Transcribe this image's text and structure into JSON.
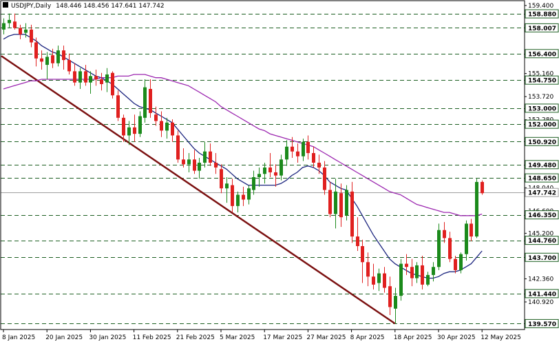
{
  "chart_data": {
    "type": "candlestick",
    "title": "USDJPY,Daily",
    "ohlc_readout": "148.446 148.456 147.641 147.742",
    "y_axis": {
      "range": [
        139.2,
        159.7
      ],
      "tick_labels": [
        {
          "value": 159.4,
          "label": "159.400"
        },
        {
          "value": 158.88,
          "label": "158.880"
        },
        {
          "value": 158.007,
          "label": "158.007"
        },
        {
          "value": 156.4,
          "label": "156.400"
        },
        {
          "value": 155.16,
          "label": "155.160"
        },
        {
          "value": 154.75,
          "label": "154.750"
        },
        {
          "value": 153.72,
          "label": "153.720"
        },
        {
          "value": 153.0,
          "label": "153.000"
        },
        {
          "value": 152.28,
          "label": "152.280"
        },
        {
          "value": 152.0,
          "label": "152.000"
        },
        {
          "value": 150.92,
          "label": "150.920"
        },
        {
          "value": 149.48,
          "label": "149.480"
        },
        {
          "value": 148.65,
          "label": "148.650"
        },
        {
          "value": 148.04,
          "label": "148.040"
        },
        {
          "value": 147.742,
          "label": "147.742"
        },
        {
          "value": 146.6,
          "label": "146.600"
        },
        {
          "value": 146.35,
          "label": "146.350"
        },
        {
          "value": 145.2,
          "label": "145.200"
        },
        {
          "value": 144.76,
          "label": "144.760"
        },
        {
          "value": 143.7,
          "label": "143.700"
        },
        {
          "value": 142.36,
          "label": "142.360"
        },
        {
          "value": 141.44,
          "label": "141.440"
        },
        {
          "value": 140.92,
          "label": "140.920"
        },
        {
          "value": 139.57,
          "label": "139.570"
        }
      ],
      "boxed_labels": [
        158.88,
        158.007,
        156.4,
        154.75,
        153.0,
        152.0,
        150.92,
        149.48,
        148.65,
        147.742,
        146.35,
        144.76,
        143.7,
        141.44,
        139.57
      ]
    },
    "x_axis": {
      "tick_labels": [
        "8 Jan 2025",
        "20 Jan 2025",
        "30 Jan 2025",
        "11 Feb 2025",
        "21 Feb 2025",
        "5 Mar 2025",
        "17 Mar 2025",
        "27 Mar 2025",
        "8 Apr 2025",
        "18 Apr 2025",
        "30 Apr 2025",
        "12 May 2025"
      ],
      "tick_bars": [
        0,
        8,
        16,
        24,
        32,
        40,
        48,
        56,
        64,
        72,
        80,
        88
      ]
    },
    "horizontal_levels": [
      158.88,
      158.007,
      156.4,
      154.75,
      153.0,
      152.0,
      150.92,
      149.48,
      148.65,
      146.35,
      144.76,
      143.7,
      141.44,
      139.57
    ],
    "current_price": 147.742,
    "trendline": {
      "start": {
        "bar": 0,
        "price": 156.25
      },
      "end": {
        "bar": 72,
        "price": 139.57
      }
    },
    "candles": [
      [
        157.9,
        158.6,
        157.6,
        158.3
      ],
      [
        158.3,
        158.9,
        158.0,
        158.5
      ],
      [
        158.4,
        158.9,
        157.9,
        158.0
      ],
      [
        158.0,
        158.2,
        157.3,
        157.6
      ],
      [
        157.7,
        158.3,
        157.4,
        157.9
      ],
      [
        157.9,
        158.2,
        156.8,
        157.1
      ],
      [
        157.1,
        157.4,
        155.6,
        156.1
      ],
      [
        156.1,
        156.6,
        155.4,
        155.9
      ],
      [
        155.7,
        156.5,
        154.8,
        156.2
      ],
      [
        156.3,
        156.7,
        155.5,
        155.8
      ],
      [
        155.8,
        156.9,
        155.6,
        156.6
      ],
      [
        156.6,
        156.9,
        155.4,
        156.0
      ],
      [
        156.0,
        156.4,
        155.1,
        155.3
      ],
      [
        155.3,
        155.8,
        154.4,
        154.6
      ],
      [
        154.6,
        155.5,
        154.2,
        155.3
      ],
      [
        155.3,
        155.7,
        154.4,
        154.6
      ],
      [
        154.6,
        155.3,
        153.9,
        155.0
      ],
      [
        155.0,
        155.4,
        154.4,
        154.8
      ],
      [
        154.8,
        155.2,
        154.1,
        154.5
      ],
      [
        154.6,
        155.5,
        154.0,
        155.1
      ],
      [
        155.2,
        155.3,
        153.6,
        153.8
      ],
      [
        153.8,
        154.1,
        152.2,
        152.4
      ],
      [
        152.4,
        152.6,
        150.9,
        151.3
      ],
      [
        151.3,
        152.2,
        150.7,
        151.8
      ],
      [
        151.8,
        152.6,
        150.9,
        151.4
      ],
      [
        151.4,
        152.8,
        151.2,
        152.5
      ],
      [
        152.4,
        154.8,
        152.1,
        154.3
      ],
      [
        154.2,
        154.8,
        152.4,
        152.7
      ],
      [
        152.6,
        153.1,
        151.9,
        152.2
      ],
      [
        152.2,
        152.8,
        151.2,
        151.6
      ],
      [
        151.6,
        152.4,
        151.1,
        152.1
      ],
      [
        152.1,
        152.3,
        150.9,
        151.3
      ],
      [
        151.3,
        151.6,
        149.6,
        149.8
      ],
      [
        149.8,
        150.5,
        149.3,
        149.5
      ],
      [
        149.5,
        150.2,
        149.0,
        149.8
      ],
      [
        149.8,
        150.4,
        148.9,
        149.1
      ],
      [
        149.1,
        149.9,
        148.6,
        149.6
      ],
      [
        149.6,
        150.9,
        149.3,
        150.3
      ],
      [
        150.3,
        150.8,
        149.4,
        149.6
      ],
      [
        149.6,
        150.2,
        148.9,
        149.3
      ],
      [
        149.2,
        149.5,
        147.7,
        148.0
      ],
      [
        148.0,
        148.7,
        147.1,
        148.3
      ],
      [
        148.2,
        148.6,
        146.5,
        146.9
      ],
      [
        146.9,
        147.8,
        146.5,
        147.6
      ],
      [
        147.6,
        148.1,
        146.9,
        147.3
      ],
      [
        147.3,
        148.2,
        147.0,
        148.0
      ],
      [
        147.9,
        149.1,
        147.6,
        148.7
      ],
      [
        148.7,
        149.3,
        148.1,
        148.9
      ],
      [
        148.9,
        149.6,
        148.3,
        149.3
      ],
      [
        149.3,
        150.2,
        148.7,
        149.0
      ],
      [
        149.0,
        149.5,
        148.1,
        148.8
      ],
      [
        148.8,
        150.1,
        148.5,
        149.8
      ],
      [
        149.8,
        151.0,
        149.4,
        150.6
      ],
      [
        150.6,
        151.2,
        149.9,
        150.3
      ],
      [
        150.3,
        150.8,
        149.6,
        150.0
      ],
      [
        150.0,
        151.1,
        149.7,
        150.9
      ],
      [
        150.9,
        151.3,
        149.8,
        150.2
      ],
      [
        150.2,
        150.6,
        149.3,
        149.6
      ],
      [
        149.6,
        150.1,
        148.9,
        149.3
      ],
      [
        149.3,
        149.7,
        147.6,
        147.9
      ],
      [
        147.9,
        148.4,
        146.2,
        146.4
      ],
      [
        146.4,
        148.6,
        145.5,
        147.8
      ],
      [
        147.7,
        148.3,
        145.6,
        146.2
      ],
      [
        146.3,
        148.2,
        146.0,
        147.9
      ],
      [
        147.8,
        148.4,
        144.6,
        145.0
      ],
      [
        145.0,
        146.2,
        144.1,
        144.4
      ],
      [
        144.4,
        144.8,
        142.1,
        143.4
      ],
      [
        143.4,
        144.0,
        141.9,
        142.5
      ],
      [
        142.5,
        143.3,
        141.7,
        142.0
      ],
      [
        142.1,
        143.0,
        141.6,
        142.7
      ],
      [
        142.7,
        143.1,
        141.5,
        141.8
      ],
      [
        141.9,
        142.5,
        140.1,
        140.6
      ],
      [
        140.5,
        141.8,
        139.6,
        141.3
      ],
      [
        141.3,
        143.6,
        141.0,
        143.3
      ],
      [
        143.3,
        143.9,
        142.6,
        143.1
      ],
      [
        143.1,
        143.6,
        141.9,
        142.4
      ],
      [
        142.4,
        143.4,
        142.1,
        143.2
      ],
      [
        143.2,
        143.8,
        141.7,
        142.0
      ],
      [
        142.0,
        142.8,
        141.9,
        142.6
      ],
      [
        142.6,
        143.4,
        142.2,
        143.1
      ],
      [
        143.1,
        145.8,
        142.9,
        145.4
      ],
      [
        145.4,
        145.9,
        144.6,
        144.9
      ],
      [
        144.9,
        145.3,
        143.4,
        143.6
      ],
      [
        143.6,
        143.8,
        142.7,
        142.9
      ],
      [
        142.9,
        144.0,
        142.7,
        143.9
      ],
      [
        143.9,
        146.0,
        143.5,
        145.8
      ],
      [
        145.8,
        146.1,
        144.7,
        145.0
      ],
      [
        145.0,
        148.6,
        144.9,
        148.4
      ],
      [
        148.4,
        148.5,
        147.6,
        147.7
      ]
    ],
    "series": [
      {
        "color": "#1a237e",
        "values": [
          157.3,
          157.5,
          157.6,
          157.6,
          157.6,
          157.4,
          157.2,
          156.9,
          156.7,
          156.5,
          156.4,
          156.2,
          156.0,
          155.8,
          155.6,
          155.4,
          155.2,
          155.0,
          154.9,
          154.7,
          154.5,
          154.2,
          153.9,
          153.6,
          153.3,
          153.1,
          153.0,
          152.9,
          152.7,
          152.5,
          152.3,
          152.1,
          151.7,
          151.3,
          150.9,
          150.5,
          150.2,
          150.0,
          149.8,
          149.6,
          149.4,
          149.2,
          148.9,
          148.6,
          148.4,
          148.2,
          148.2,
          148.2,
          148.2,
          148.2,
          148.2,
          148.3,
          148.5,
          148.8,
          149.0,
          149.3,
          149.4,
          149.3,
          149.1,
          148.8,
          148.4,
          148.2,
          148.0,
          147.9,
          147.4,
          146.9,
          146.3,
          145.7,
          145.1,
          144.6,
          144.1,
          143.6,
          143.3,
          143.1,
          142.9,
          142.7,
          142.6,
          142.5,
          142.4,
          142.4,
          142.5,
          142.7,
          142.8,
          142.8,
          142.9,
          143.1,
          143.3,
          143.7,
          144.1
        ]
      },
      {
        "color": "#9c27b0",
        "values": [
          154.2,
          154.3,
          154.4,
          154.5,
          154.6,
          154.7,
          154.7,
          154.8,
          154.8,
          154.8,
          154.8,
          154.8,
          154.8,
          154.8,
          154.8,
          154.8,
          154.8,
          154.8,
          154.9,
          154.9,
          154.9,
          155.0,
          155.0,
          155.0,
          155.1,
          155.1,
          155.1,
          155.0,
          154.9,
          154.9,
          154.8,
          154.7,
          154.6,
          154.5,
          154.4,
          154.2,
          154.0,
          153.8,
          153.6,
          153.4,
          153.1,
          152.9,
          152.7,
          152.5,
          152.3,
          152.1,
          151.9,
          151.7,
          151.6,
          151.4,
          151.3,
          151.2,
          151.1,
          151.0,
          150.9,
          150.8,
          150.7,
          150.6,
          150.4,
          150.2,
          150.0,
          149.8,
          149.6,
          149.4,
          149.2,
          149.0,
          148.8,
          148.6,
          148.4,
          148.2,
          148.0,
          147.8,
          147.7,
          147.6,
          147.4,
          147.2,
          147.0,
          146.9,
          146.8,
          146.7,
          146.6,
          146.5,
          146.5,
          146.4,
          146.3,
          146.3,
          146.3,
          146.3,
          146.4
        ]
      }
    ]
  }
}
